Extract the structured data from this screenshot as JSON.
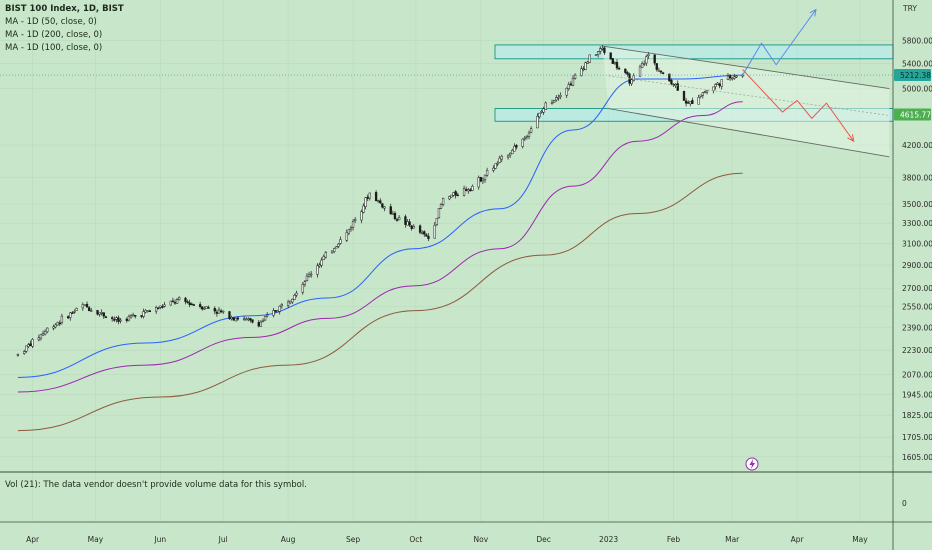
{
  "legend": {
    "symbol": "BIST 100 Index, 1D, BIST",
    "ma50": "MA - 1D (50, close, 0)",
    "ma200": "MA - 1D (200, close, 0)",
    "ma100": "MA - 1D (100, close, 0)"
  },
  "volume_pane": {
    "label": "Vol (21): The data vendor doesn't provide volume data for this symbol.",
    "tick": "0"
  },
  "price_scale": {
    "currency": "TRY"
  },
  "colors": {
    "background": "#c8e6c9",
    "candle": "#1a1a1a",
    "ma50": "#2962ff",
    "ma100": "#9c27b0",
    "ma200": "#8d5a3c",
    "zone_fill": "#b2ebf2",
    "zone_border": "#00897b",
    "last_price_badge": "#26a69a",
    "level_badge": "#4caf50",
    "projection_up": "#5b8def",
    "projection_down": "#ef5350",
    "grid": "#b9dbba"
  },
  "chart_data": {
    "type": "candlestick",
    "title": "BIST 100 Index, 1D, BIST",
    "xlabel": "",
    "ylabel": "",
    "scale": "log",
    "grid": true,
    "x_tick_labels": [
      "Apr",
      "May",
      "Jun",
      "Jul",
      "Aug",
      "Sep",
      "Oct",
      "Nov",
      "Dec",
      "2023",
      "Feb",
      "Mar",
      "Apr",
      "May"
    ],
    "y_tick_values": [
      1605,
      1705,
      1825,
      1945,
      2070,
      2230,
      2390,
      2550,
      2700,
      2900,
      3100,
      3300,
      3500,
      3800,
      4200,
      5000,
      5400,
      5800
    ],
    "y_tick_labels": [
      "1605.00",
      "1705.00",
      "1825.00",
      "1945.00",
      "2070.00",
      "2230.00",
      "2390.00",
      "2550.00",
      "2700.00",
      "2900.00",
      "3100.00",
      "3300.00",
      "3500.00",
      "3800.00",
      "4200.00",
      "5000.00",
      "5400.00",
      "5800.00"
    ],
    "ylim": [
      1560,
      6450
    ],
    "last_price": {
      "value": 5212.38,
      "label": "5212.38"
    },
    "key_level": {
      "value": 4615.77,
      "label": "4615.77"
    },
    "resistance_zone": [
      5480,
      5720
    ],
    "support_zone": [
      4520,
      4700
    ],
    "close_path": [
      [
        "2022-03-25",
        2200
      ],
      [
        "2022-04-08",
        2380
      ],
      [
        "2022-04-25",
        2560
      ],
      [
        "2022-05-12",
        2440
      ],
      [
        "2022-05-27",
        2520
      ],
      [
        "2022-06-10",
        2600
      ],
      [
        "2022-06-24",
        2540
      ],
      [
        "2022-07-06",
        2470
      ],
      [
        "2022-07-18",
        2420
      ],
      [
        "2022-08-01",
        2600
      ],
      [
        "2022-08-15",
        2900
      ],
      [
        "2022-08-29",
        3200
      ],
      [
        "2022-09-09",
        3620
      ],
      [
        "2022-09-20",
        3380
      ],
      [
        "2022-09-30",
        3250
      ],
      [
        "2022-10-07",
        3150
      ],
      [
        "2022-10-14",
        3550
      ],
      [
        "2022-10-28",
        3700
      ],
      [
        "2022-11-08",
        3950
      ],
      [
        "2022-11-22",
        4300
      ],
      [
        "2022-12-02",
        4750
      ],
      [
        "2022-12-13",
        5050
      ],
      [
        "2022-12-23",
        5500
      ],
      [
        "2022-12-29",
        5650
      ],
      [
        "2023-01-05",
        5350
      ],
      [
        "2023-01-12",
        5100
      ],
      [
        "2023-01-20",
        5550
      ],
      [
        "2023-01-27",
        5200
      ],
      [
        "2023-02-02",
        5050
      ],
      [
        "2023-02-08",
        4750
      ],
      [
        "2023-02-13",
        4900
      ],
      [
        "2023-02-21",
        5050
      ],
      [
        "2023-03-01",
        5200
      ],
      [
        "2023-03-06",
        5212
      ]
    ],
    "series": [
      {
        "name": "MA - 1D (50, close, 0)",
        "color": "#2962ff",
        "points": [
          [
            "2022-03-25",
            2050
          ],
          [
            "2022-05-25",
            2280
          ],
          [
            "2022-07-15",
            2480
          ],
          [
            "2022-08-20",
            2620
          ],
          [
            "2022-09-30",
            3050
          ],
          [
            "2022-11-10",
            3450
          ],
          [
            "2022-12-15",
            4400
          ],
          [
            "2023-01-15",
            5150
          ],
          [
            "2023-02-05",
            5150
          ],
          [
            "2023-03-06",
            5212
          ]
        ]
      },
      {
        "name": "MA - 1D (100, close, 0)",
        "color": "#9c27b0",
        "points": [
          [
            "2022-03-25",
            1960
          ],
          [
            "2022-05-25",
            2130
          ],
          [
            "2022-07-15",
            2320
          ],
          [
            "2022-08-20",
            2460
          ],
          [
            "2022-09-30",
            2720
          ],
          [
            "2022-11-10",
            3050
          ],
          [
            "2022-12-15",
            3700
          ],
          [
            "2023-01-15",
            4250
          ],
          [
            "2023-02-15",
            4600
          ],
          [
            "2023-03-06",
            4800
          ]
        ]
      },
      {
        "name": "MA - 1D (200, close, 0)",
        "color": "#8d5a3c",
        "points": [
          [
            "2022-03-25",
            1740
          ],
          [
            "2022-06-01",
            1930
          ],
          [
            "2022-08-01",
            2130
          ],
          [
            "2022-10-01",
            2520
          ],
          [
            "2022-12-01",
            2990
          ],
          [
            "2023-01-15",
            3400
          ],
          [
            "2023-03-06",
            3850
          ]
        ]
      }
    ],
    "annotations": [
      {
        "type": "trendline",
        "from": [
          "2022-12-29",
          5700
        ],
        "to": [
          "2023-05-15",
          5000
        ]
      },
      {
        "type": "trendline",
        "from": [
          "2023-01-01",
          4700
        ],
        "to": [
          "2023-05-15",
          4050
        ]
      },
      {
        "type": "trendline",
        "from": [
          "2023-01-01",
          5200
        ],
        "to": [
          "2023-05-15",
          4600
        ]
      },
      {
        "type": "projection",
        "direction": "up",
        "color": "#5b8def",
        "points": [
          [
            "2023-03-06",
            5212
          ],
          [
            "2023-03-15",
            5750
          ],
          [
            "2023-03-22",
            5380
          ],
          [
            "2023-04-10",
            6380
          ]
        ]
      },
      {
        "type": "projection",
        "direction": "down",
        "color": "#ef5350",
        "points": [
          [
            "2023-03-06",
            5300
          ],
          [
            "2023-03-25",
            4650
          ],
          [
            "2023-04-01",
            4820
          ],
          [
            "2023-04-08",
            4560
          ],
          [
            "2023-04-15",
            4780
          ],
          [
            "2023-04-28",
            4250
          ]
        ]
      }
    ]
  }
}
